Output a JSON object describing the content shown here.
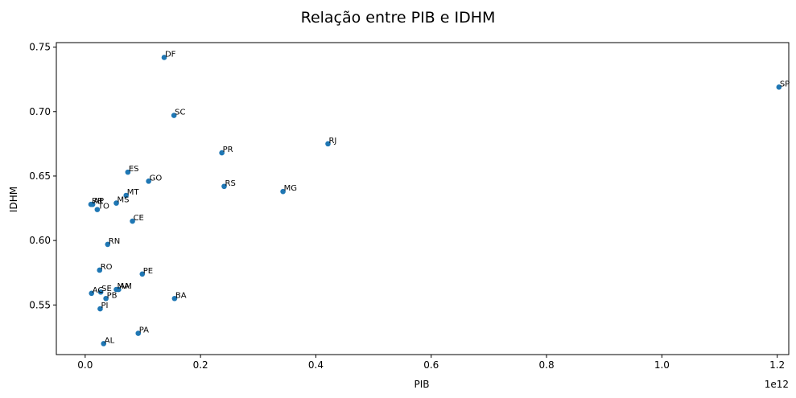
{
  "chart_data": {
    "type": "scatter",
    "title": "Relação entre PIB e IDHM",
    "xlabel": "PIB",
    "ylabel": "IDHM",
    "x_offset_text": "1e12",
    "xlim": [
      -0.05,
      1.22
    ],
    "ylim": [
      0.5115,
      0.7535
    ],
    "x_ticks": [
      0.0,
      0.2,
      0.4,
      0.6,
      0.8,
      1.0,
      1.2
    ],
    "x_tick_labels": [
      "0.0",
      "0.2",
      "0.4",
      "0.6",
      "0.8",
      "1.0",
      "1.2"
    ],
    "y_ticks": [
      0.55,
      0.6,
      0.65,
      0.7,
      0.75
    ],
    "y_tick_labels": [
      "0.55",
      "0.60",
      "0.65",
      "0.70",
      "0.75"
    ],
    "marker_color": "#1f77b4",
    "grid": false,
    "points": [
      {
        "label": "DF",
        "x": 0.137,
        "y": 0.742
      },
      {
        "label": "SP",
        "x": 1.203,
        "y": 0.719
      },
      {
        "label": "SC",
        "x": 0.154,
        "y": 0.697
      },
      {
        "label": "RJ",
        "x": 0.421,
        "y": 0.675
      },
      {
        "label": "PR",
        "x": 0.237,
        "y": 0.668
      },
      {
        "label": "ES",
        "x": 0.074,
        "y": 0.653
      },
      {
        "label": "GO",
        "x": 0.11,
        "y": 0.646
      },
      {
        "label": "RS",
        "x": 0.241,
        "y": 0.642
      },
      {
        "label": "MG",
        "x": 0.343,
        "y": 0.638
      },
      {
        "label": "MT",
        "x": 0.071,
        "y": 0.635
      },
      {
        "label": "MS",
        "x": 0.054,
        "y": 0.629
      },
      {
        "label": "AP",
        "x": 0.013,
        "y": 0.628
      },
      {
        "label": "RR",
        "x": 0.01,
        "y": 0.628
      },
      {
        "label": "TO",
        "x": 0.021,
        "y": 0.624
      },
      {
        "label": "CE",
        "x": 0.082,
        "y": 0.615
      },
      {
        "label": "RN",
        "x": 0.039,
        "y": 0.597
      },
      {
        "label": "RO",
        "x": 0.025,
        "y": 0.577
      },
      {
        "label": "PE",
        "x": 0.099,
        "y": 0.574
      },
      {
        "label": "AM",
        "x": 0.058,
        "y": 0.562
      },
      {
        "label": "MA",
        "x": 0.054,
        "y": 0.562
      },
      {
        "label": "SE",
        "x": 0.027,
        "y": 0.56
      },
      {
        "label": "AC",
        "x": 0.011,
        "y": 0.559
      },
      {
        "label": "PB",
        "x": 0.036,
        "y": 0.555
      },
      {
        "label": "BA",
        "x": 0.155,
        "y": 0.555
      },
      {
        "label": "PI",
        "x": 0.026,
        "y": 0.547
      },
      {
        "label": "PA",
        "x": 0.092,
        "y": 0.528
      },
      {
        "label": "AL",
        "x": 0.032,
        "y": 0.52
      }
    ]
  }
}
